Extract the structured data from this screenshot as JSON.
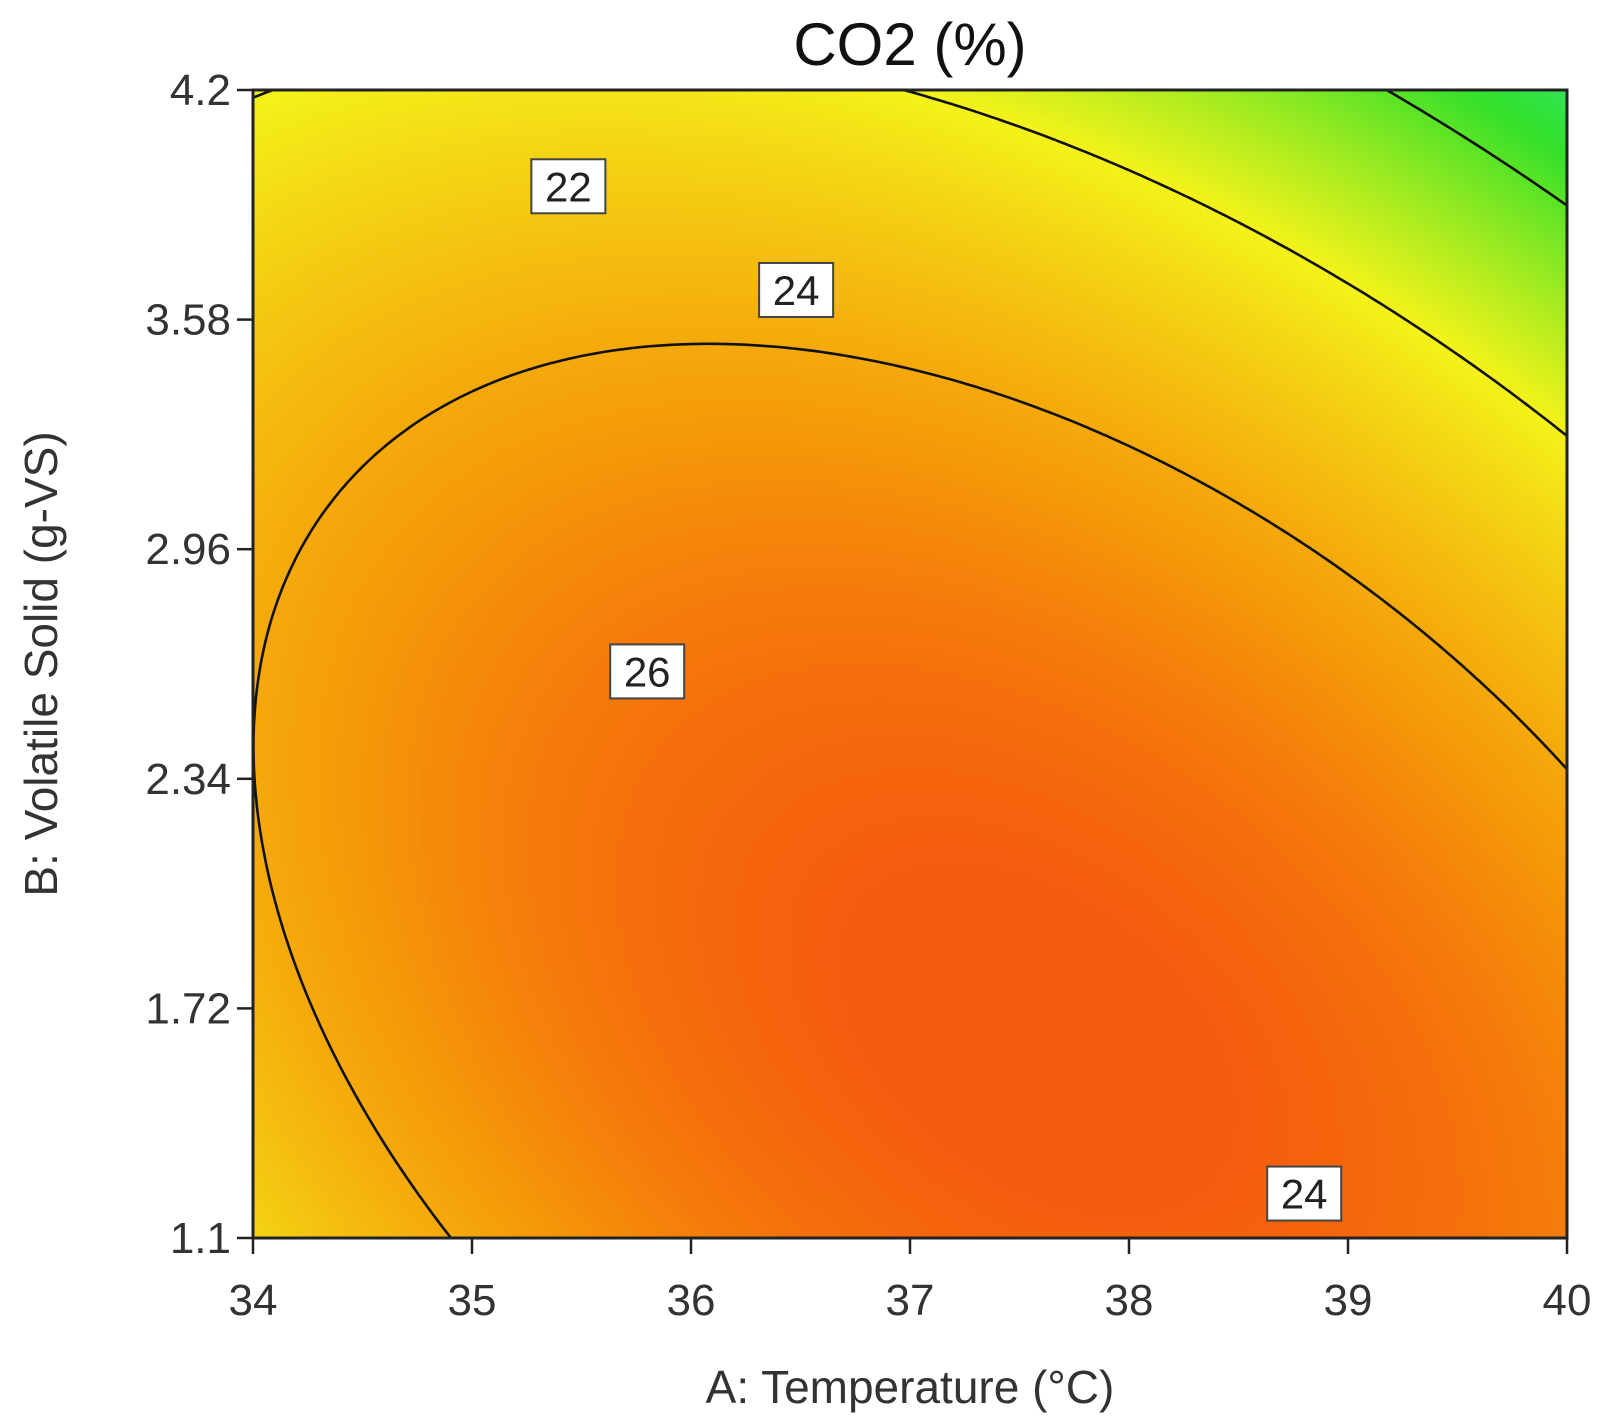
{
  "chart_data": {
    "type": "contour",
    "title": "CO2 (%)",
    "xlabel": "A: Temperature (°C)",
    "ylabel": "B: Volatile Solid (g-VS)",
    "xlim": [
      34,
      40
    ],
    "ylim": [
      1.1,
      4.2
    ],
    "x_ticks": [
      "34",
      "35",
      "36",
      "37",
      "38",
      "39",
      "40"
    ],
    "y_ticks": [
      "1.1",
      "1.72",
      "2.34",
      "2.96",
      "3.58",
      "4.2"
    ],
    "contour_levels": [
      20,
      22,
      24,
      26
    ],
    "contour_labels": [
      {
        "text": "22",
        "x": 35.44,
        "y": 3.94
      },
      {
        "text": "24",
        "x": 36.48,
        "y": 3.66
      },
      {
        "text": "26",
        "x": 35.8,
        "y": 2.63
      },
      {
        "text": "24",
        "x": 38.8,
        "y": 1.22
      }
    ],
    "response_range": [
      19,
      29
    ],
    "colors": {
      "low": "#2ef0c8",
      "mid_low": "#33e02a",
      "mid": "#f4f31a",
      "mid_high": "#f59708",
      "high": "#f52514"
    }
  }
}
